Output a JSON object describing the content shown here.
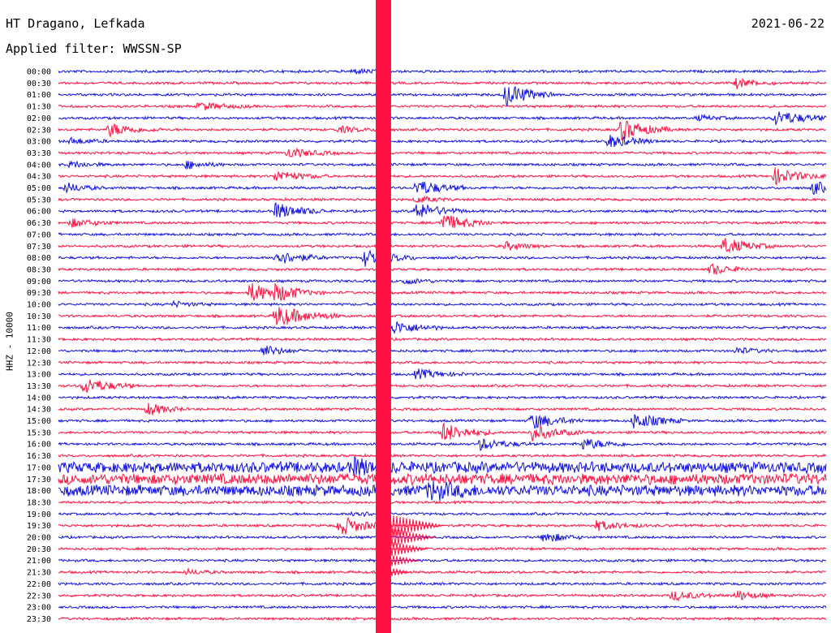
{
  "header": {
    "station": "HT Dragano, Lefkada",
    "filter": "Applied filter: WWSSN-SP",
    "date": "2021-06-22",
    "channel": "HHZ - 10000"
  },
  "colors": {
    "blue": "#1010e0",
    "red": "#ff1040"
  },
  "chart_data": {
    "type": "line",
    "title": "HT Dragano, Lefkada",
    "subtitle": "Applied filter: WWSSN-SP",
    "date": "2021-06-22",
    "ylabel": "HHZ - 10000",
    "xlabel": "",
    "row_labels": [
      "00:00",
      "00:30",
      "01:00",
      "01:30",
      "02:00",
      "02:30",
      "03:00",
      "03:30",
      "04:00",
      "04:30",
      "05:00",
      "05:30",
      "06:00",
      "06:30",
      "07:00",
      "07:30",
      "08:00",
      "08:30",
      "09:00",
      "09:30",
      "10:00",
      "10:30",
      "11:00",
      "11:30",
      "12:00",
      "12:30",
      "13:00",
      "13:30",
      "14:00",
      "14:30",
      "15:00",
      "15:30",
      "16:00",
      "16:30",
      "17:00",
      "17:30",
      "18:00",
      "18:30",
      "19:00",
      "19:30",
      "20:00",
      "20:30",
      "21:00",
      "21:30",
      "22:00",
      "22:30",
      "23:00",
      "23:30"
    ],
    "row_minutes": 30,
    "series_colors": [
      "blue",
      "red"
    ],
    "events": [
      {
        "row": 0,
        "min": 11.5,
        "amp": 3,
        "dur": 1.5
      },
      {
        "row": 1,
        "min": 26.5,
        "amp": 6,
        "dur": 1.5
      },
      {
        "row": 2,
        "min": 17.5,
        "amp": 14,
        "dur": 2
      },
      {
        "row": 3,
        "min": 5.5,
        "amp": 5,
        "dur": 2
      },
      {
        "row": 4,
        "min": 25,
        "amp": 3,
        "dur": 1.5
      },
      {
        "row": 4,
        "min": 28,
        "amp": 9,
        "dur": 2.5
      },
      {
        "row": 5,
        "min": 2,
        "amp": 8,
        "dur": 2
      },
      {
        "row": 5,
        "min": 22,
        "amp": 13,
        "dur": 2
      },
      {
        "row": 5,
        "min": 11,
        "amp": 4,
        "dur": 1.5
      },
      {
        "row": 6,
        "min": 0.5,
        "amp": 4,
        "dur": 1.5
      },
      {
        "row": 6,
        "min": 21.5,
        "amp": 8,
        "dur": 2
      },
      {
        "row": 7,
        "min": 9,
        "amp": 6,
        "dur": 2
      },
      {
        "row": 8,
        "min": 5,
        "amp": 5,
        "dur": 1.5
      },
      {
        "row": 8,
        "min": 0.5,
        "amp": 4,
        "dur": 1.5
      },
      {
        "row": 9,
        "min": 8.5,
        "amp": 7,
        "dur": 2
      },
      {
        "row": 9,
        "min": 28,
        "amp": 10,
        "dur": 2
      },
      {
        "row": 10,
        "min": 0.3,
        "amp": 6,
        "dur": 1.5
      },
      {
        "row": 10,
        "min": 14,
        "amp": 10,
        "dur": 2
      },
      {
        "row": 10,
        "min": 29.5,
        "amp": 8,
        "dur": 1.5
      },
      {
        "row": 11,
        "min": 14,
        "amp": 4,
        "dur": 1.5
      },
      {
        "row": 12,
        "min": 8.5,
        "amp": 10,
        "dur": 2
      },
      {
        "row": 12,
        "min": 14,
        "amp": 10,
        "dur": 2
      },
      {
        "row": 13,
        "min": 0.5,
        "amp": 5,
        "dur": 2
      },
      {
        "row": 13,
        "min": 15,
        "amp": 11,
        "dur": 2
      },
      {
        "row": 15,
        "min": 17.5,
        "amp": 5,
        "dur": 1.5
      },
      {
        "row": 15,
        "min": 26,
        "amp": 10,
        "dur": 2
      },
      {
        "row": 16,
        "min": 8.5,
        "amp": 9,
        "dur": 2
      },
      {
        "row": 16,
        "min": 12,
        "amp": 11,
        "dur": 2
      },
      {
        "row": 17,
        "min": 25.5,
        "amp": 7,
        "dur": 1.5
      },
      {
        "row": 18,
        "min": 13.5,
        "amp": 4,
        "dur": 1.5
      },
      {
        "row": 19,
        "min": 7.5,
        "amp": 12,
        "dur": 2
      },
      {
        "row": 19,
        "min": 8.5,
        "amp": 8,
        "dur": 2
      },
      {
        "row": 20,
        "min": 4.5,
        "amp": 3,
        "dur": 1.5
      },
      {
        "row": 21,
        "min": 8.5,
        "amp": 13,
        "dur": 2.5
      },
      {
        "row": 22,
        "min": 13,
        "amp": 9,
        "dur": 2
      },
      {
        "row": 24,
        "min": 8,
        "amp": 7,
        "dur": 1.5
      },
      {
        "row": 24,
        "min": 26.5,
        "amp": 4,
        "dur": 1.5
      },
      {
        "row": 26,
        "min": 14,
        "amp": 6,
        "dur": 2
      },
      {
        "row": 27,
        "min": 1,
        "amp": 10,
        "dur": 2
      },
      {
        "row": 29,
        "min": 3.5,
        "amp": 8,
        "dur": 1.5
      },
      {
        "row": 30,
        "min": 18.5,
        "amp": 10,
        "dur": 2
      },
      {
        "row": 30,
        "min": 22.5,
        "amp": 10,
        "dur": 2
      },
      {
        "row": 31,
        "min": 15,
        "amp": 12,
        "dur": 2
      },
      {
        "row": 31,
        "min": 18.5,
        "amp": 10,
        "dur": 2
      },
      {
        "row": 32,
        "min": 16.5,
        "amp": 7,
        "dur": 2
      },
      {
        "row": 32,
        "min": 20.5,
        "amp": 7,
        "dur": 2
      },
      {
        "row": 34,
        "min": 11.5,
        "amp": 8,
        "dur": 2
      },
      {
        "row": 36,
        "min": 14.5,
        "amp": 9,
        "dur": 2
      },
      {
        "row": 38,
        "min": 11.5,
        "amp": 4,
        "dur": 1.5
      },
      {
        "row": 39,
        "min": 11,
        "amp": 12,
        "dur": 2
      },
      {
        "row": 39,
        "min": 21,
        "amp": 6,
        "dur": 2
      },
      {
        "row": 40,
        "min": 19,
        "amp": 7,
        "dur": 1.5
      },
      {
        "row": 43,
        "min": 5,
        "amp": 3,
        "dur": 1.5
      },
      {
        "row": 45,
        "min": 24,
        "amp": 6,
        "dur": 2
      },
      {
        "row": 45,
        "min": 26.5,
        "amp": 6,
        "dur": 1.5
      }
    ],
    "large_event": {
      "min": 12.4,
      "width_min": 0.6,
      "start_row": 0,
      "end_row": 47,
      "coda_rows": [
        39,
        40,
        41,
        42,
        43
      ]
    },
    "noisy_rows": [
      34,
      35,
      36
    ]
  }
}
